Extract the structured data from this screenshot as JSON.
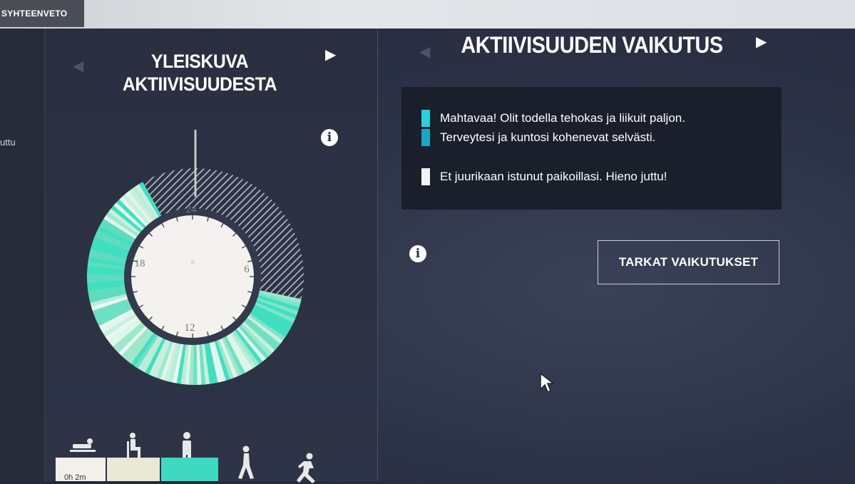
{
  "tabs": {
    "summary": "SYHTEENVETO"
  },
  "sidebar": {
    "partial_text": "uttu"
  },
  "left_panel": {
    "title_line1": "YLEISKUVA",
    "title_line2": "AKTIIVISUUDESTA",
    "clock_labels": {
      "top": "24",
      "right": "6",
      "bottom": "12",
      "left": "18"
    },
    "bar_partial_label": "0h 2m"
  },
  "right_panel": {
    "title": "AKTIIVISUUDEN VAIKUTUS",
    "messages": [
      {
        "text": "Mahtavaa! Olit todella tehokas ja liikuit paljon.",
        "color": "#2ad0e0"
      },
      {
        "text": "Terveytesi ja kuntosi kohenevat selvästi.",
        "color": "#1aa6c0"
      },
      {
        "text": "Et juurikaan istunut paikoillasi. Hieno juttu!",
        "color": "#f4f4f4"
      }
    ],
    "details_button": "TARKAT VAIKUTUKSET"
  },
  "icons": {
    "info": "i",
    "next": "▶",
    "prev": "◀"
  },
  "colors": {
    "accent_teal": "#3fe0c0",
    "light_mint": "#c8f0de",
    "hatch": "#bfc3cc"
  }
}
